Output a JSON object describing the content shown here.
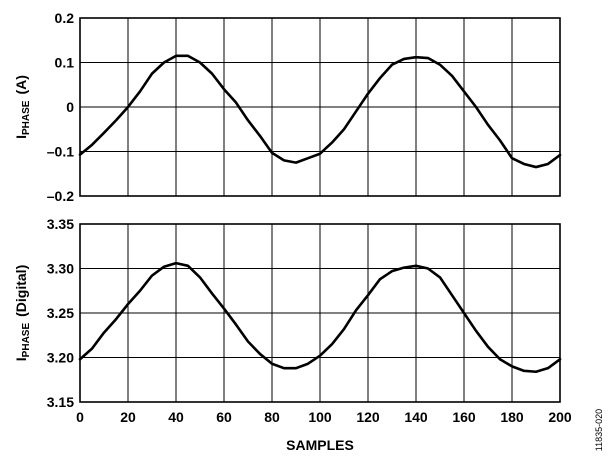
{
  "figure_id": "11835-020",
  "chart_data": [
    {
      "type": "line",
      "panel": "top",
      "ylabel": {
        "main": "I",
        "sub": "PHASE",
        "rest": "(A)"
      },
      "xlim": [
        0,
        200
      ],
      "ylim": [
        -0.2,
        0.2
      ],
      "yticks": [
        -0.2,
        -0.1,
        0,
        0.1,
        0.2
      ],
      "ytick_labels": [
        "–0.2",
        "–0.1",
        "0",
        "0.1",
        "0.2"
      ],
      "xticks": [
        0,
        20,
        40,
        60,
        80,
        100,
        120,
        140,
        160,
        180,
        200
      ],
      "grid": true,
      "series": [
        {
          "x": [
            0,
            5,
            10,
            15,
            20,
            25,
            30,
            35,
            40,
            45,
            50,
            55,
            60,
            65,
            70,
            75,
            80,
            85,
            90,
            95,
            100,
            105,
            110,
            115,
            120,
            125,
            130,
            135,
            140,
            145,
            150,
            155,
            160,
            165,
            170,
            175,
            180,
            185,
            190,
            195,
            200
          ],
          "values": [
            -0.107,
            -0.085,
            -0.058,
            -0.03,
            0.0,
            0.035,
            0.075,
            0.1,
            0.115,
            0.115,
            0.1,
            0.075,
            0.04,
            0.01,
            -0.03,
            -0.065,
            -0.103,
            -0.12,
            -0.125,
            -0.115,
            -0.105,
            -0.08,
            -0.05,
            -0.01,
            0.03,
            0.065,
            0.095,
            0.108,
            0.112,
            0.11,
            0.095,
            0.07,
            0.035,
            0.0,
            -0.04,
            -0.075,
            -0.115,
            -0.128,
            -0.135,
            -0.128,
            -0.108
          ]
        }
      ]
    },
    {
      "type": "line",
      "panel": "bottom",
      "ylabel": {
        "main": "I",
        "sub": "PHASE",
        "rest": "(Digital)"
      },
      "xlabel": "SAMPLES",
      "xlim": [
        0,
        200
      ],
      "ylim": [
        3.15,
        3.35
      ],
      "yticks": [
        3.15,
        3.2,
        3.25,
        3.3,
        3.35
      ],
      "ytick_labels": [
        "3.15",
        "3.20",
        "3.25",
        "3.30",
        "3.35"
      ],
      "xticks": [
        0,
        20,
        40,
        60,
        80,
        100,
        120,
        140,
        160,
        180,
        200
      ],
      "xtick_labels": [
        "0",
        "20",
        "40",
        "60",
        "80",
        "100",
        "120",
        "140",
        "160",
        "180",
        "200"
      ],
      "grid": true,
      "series": [
        {
          "x": [
            0,
            5,
            10,
            15,
            20,
            25,
            30,
            35,
            40,
            45,
            50,
            55,
            60,
            65,
            70,
            75,
            80,
            85,
            90,
            95,
            100,
            105,
            110,
            115,
            120,
            125,
            130,
            135,
            140,
            145,
            150,
            155,
            160,
            165,
            170,
            175,
            180,
            185,
            190,
            195,
            200
          ],
          "values": [
            3.198,
            3.21,
            3.228,
            3.243,
            3.26,
            3.275,
            3.292,
            3.302,
            3.306,
            3.303,
            3.29,
            3.272,
            3.255,
            3.237,
            3.218,
            3.204,
            3.193,
            3.188,
            3.188,
            3.193,
            3.202,
            3.215,
            3.232,
            3.253,
            3.27,
            3.288,
            3.297,
            3.301,
            3.303,
            3.3,
            3.29,
            3.27,
            3.25,
            3.23,
            3.212,
            3.198,
            3.19,
            3.185,
            3.184,
            3.188,
            3.198
          ]
        }
      ]
    }
  ]
}
